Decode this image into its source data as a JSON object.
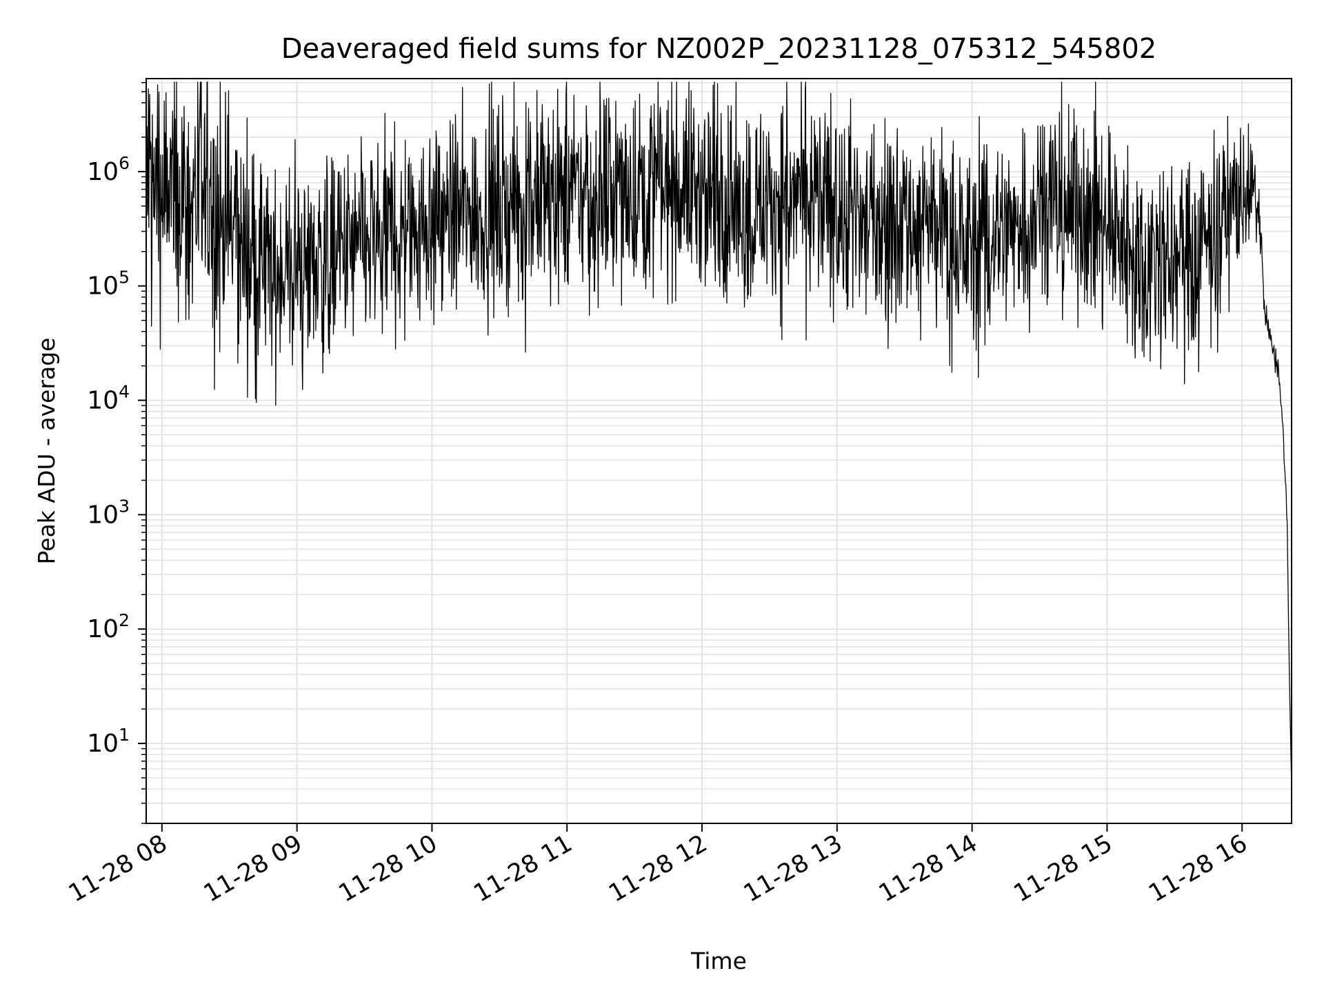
{
  "chart_data": {
    "type": "line",
    "title": "Deaveraged field sums for NZ002P_20231128_075312_545802",
    "xlabel": "Time",
    "ylabel": "Peak ADU - average",
    "x_tick_labels": [
      "11-28 08",
      "11-28 09",
      "11-28 10",
      "11-28 11",
      "11-28 12",
      "11-28 13",
      "11-28 14",
      "11-28 15",
      "11-28 16"
    ],
    "y_tick_labels": [
      {
        "base": "10",
        "exp": "1"
      },
      {
        "base": "10",
        "exp": "2"
      },
      {
        "base": "10",
        "exp": "3"
      },
      {
        "base": "10",
        "exp": "4"
      },
      {
        "base": "10",
        "exp": "5"
      },
      {
        "base": "10",
        "exp": "6"
      }
    ],
    "x_scale": "time",
    "xlim": [
      "2023-11-28 07:53",
      "2023-11-28 16:22"
    ],
    "y_scale": "log",
    "ylim": [
      2,
      6500000
    ],
    "grid": true,
    "line_color": "#000000",
    "series": [
      {
        "x": [
          "2023-11-28 07:53",
          "2023-11-28 08:00",
          "2023-11-28 08:15",
          "2023-11-28 08:30",
          "2023-11-28 08:45",
          "2023-11-28 09:00",
          "2023-11-28 09:15",
          "2023-11-28 09:30",
          "2023-11-28 09:45",
          "2023-11-28 10:00",
          "2023-11-28 10:15",
          "2023-11-28 10:30",
          "2023-11-28 10:45",
          "2023-11-28 11:00",
          "2023-11-28 11:15",
          "2023-11-28 11:30",
          "2023-11-28 11:45",
          "2023-11-28 12:00",
          "2023-11-28 12:15",
          "2023-11-28 12:30",
          "2023-11-28 12:45",
          "2023-11-28 13:00",
          "2023-11-28 13:15",
          "2023-11-28 13:30",
          "2023-11-28 13:45",
          "2023-11-28 14:00",
          "2023-11-28 14:15",
          "2023-11-28 14:30",
          "2023-11-28 14:45",
          "2023-11-28 15:00",
          "2023-11-28 15:15",
          "2023-11-28 15:30",
          "2023-11-28 15:45",
          "2023-11-28 16:00",
          "2023-11-28 16:05",
          "2023-11-28 16:08",
          "2023-11-28 16:10",
          "2023-11-28 16:13",
          "2023-11-28 16:16",
          "2023-11-28 16:18",
          "2023-11-28 16:20",
          "2023-11-28 16:21",
          "2023-11-28 16:22"
        ],
        "values": [
          900000,
          650000,
          600000,
          350000,
          130000,
          140000,
          170000,
          220000,
          300000,
          380000,
          420000,
          500000,
          550000,
          650000,
          600000,
          700000,
          800000,
          700000,
          500000,
          550000,
          600000,
          450000,
          350000,
          400000,
          300000,
          220000,
          300000,
          600000,
          500000,
          300000,
          200000,
          150000,
          250000,
          700000,
          600000,
          400000,
          60000,
          30000,
          20000,
          6000,
          900,
          40,
          4
        ],
        "noise_decades": [
          0.6,
          0.6,
          0.55,
          0.55,
          0.45,
          0.45,
          0.45,
          0.45,
          0.45,
          0.45,
          0.45,
          0.45,
          0.45,
          0.45,
          0.45,
          0.45,
          0.45,
          0.45,
          0.45,
          0.45,
          0.45,
          0.45,
          0.45,
          0.45,
          0.45,
          0.45,
          0.45,
          0.45,
          0.45,
          0.45,
          0.45,
          0.45,
          0.45,
          0.35,
          0.2,
          0.1,
          0.08,
          0.05,
          0.05,
          0.05,
          0.05,
          0,
          0
        ]
      }
    ]
  }
}
